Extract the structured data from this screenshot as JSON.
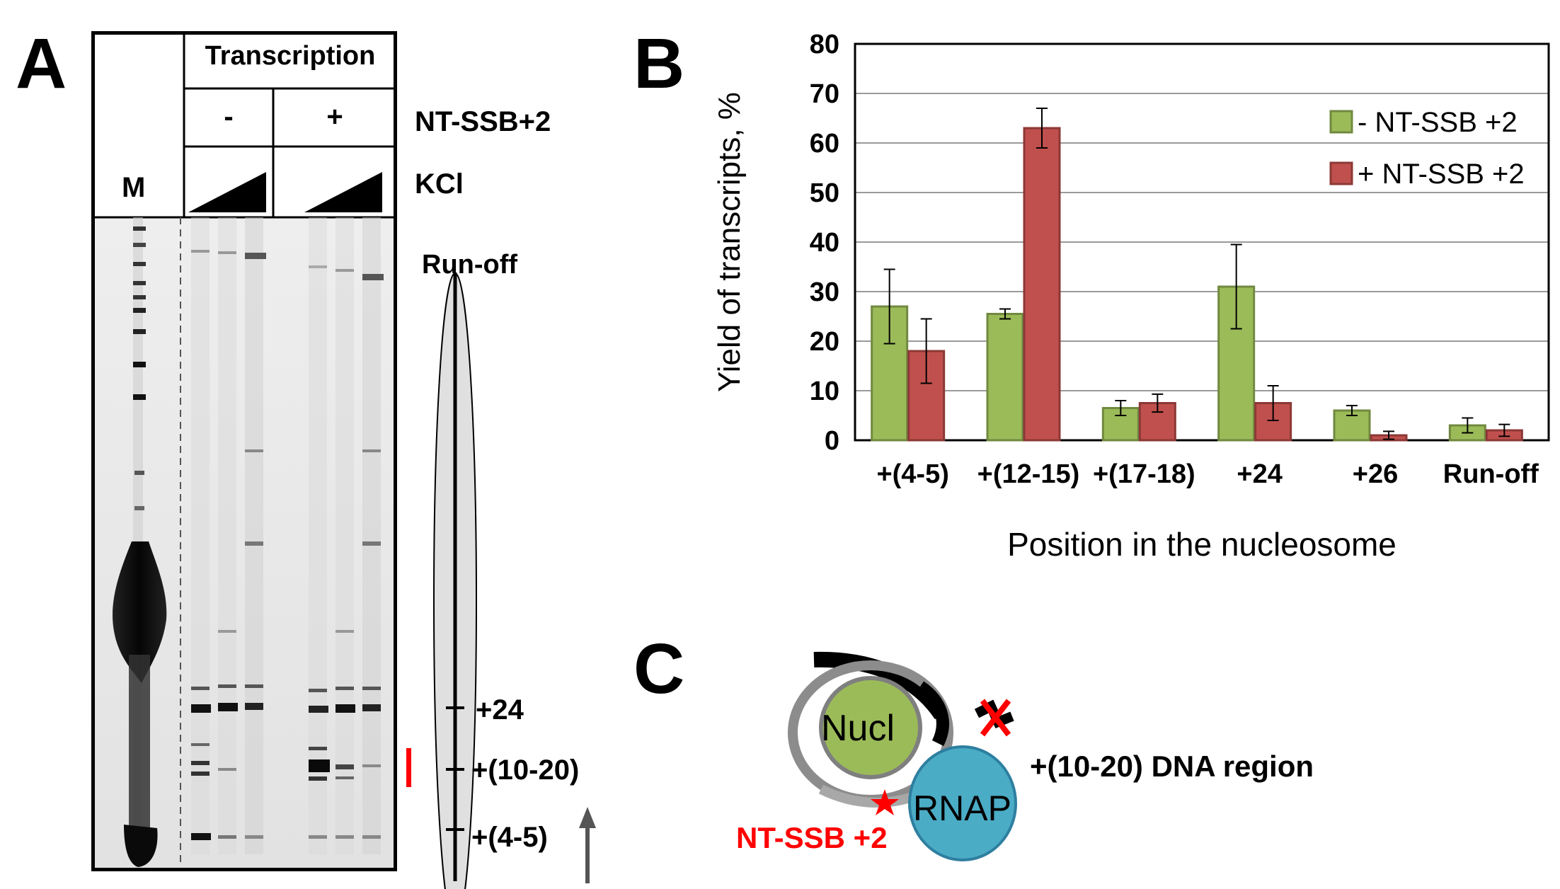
{
  "panel_a": {
    "letter": "A",
    "marker_label": "M",
    "header": "Transcription",
    "minus": "-",
    "plus": "+",
    "ntssb_label": "NT-SSB+2",
    "kcl_label": "KCl",
    "runoff_label": "Run-off",
    "pos_24": "+24",
    "pos_10_20": "+(10-20)",
    "pos_4_5": "+(4-5)"
  },
  "panel_b": {
    "letter": "B"
  },
  "panel_c": {
    "letter": "C",
    "nucl_label": "Nucl",
    "rnap_label": "RNAP",
    "region_label": "+(10-20) DNA region",
    "ntssb_label": "NT-SSB +2"
  },
  "colors": {
    "green_fill": "#9bbb59",
    "green_edge": "#71893f",
    "red_fill": "#c0504d",
    "red_edge": "#8c3836",
    "nucl_fill": "#9bbb59",
    "rnap_fill": "#4bacc6",
    "annotation_red": "#ff0000"
  },
  "chart_data": {
    "type": "bar",
    "title": "",
    "xlabel": "Position in the nucleosome",
    "ylabel": "Yield of transcripts, %",
    "categories": [
      "+(4-5)",
      "+(12-15)",
      "+(17-18)",
      "+24",
      "+26",
      "Run-off"
    ],
    "ylim": [
      0,
      80
    ],
    "yticks": [
      0,
      10,
      20,
      30,
      40,
      50,
      60,
      70,
      80
    ],
    "grid": true,
    "legend_position": "top-right",
    "series": [
      {
        "name": "- NT-SSB +2",
        "values": [
          27,
          25.5,
          6.5,
          31,
          6,
          3
        ],
        "errors": [
          7.5,
          1,
          1.5,
          8.5,
          1,
          1.5
        ],
        "color": "#9bbb59"
      },
      {
        "name": "+ NT-SSB +2",
        "values": [
          18,
          63,
          7.5,
          7.5,
          1,
          2
        ],
        "errors": [
          6.5,
          4,
          1.8,
          3.5,
          0.8,
          1.2
        ],
        "color": "#c0504d"
      }
    ]
  }
}
